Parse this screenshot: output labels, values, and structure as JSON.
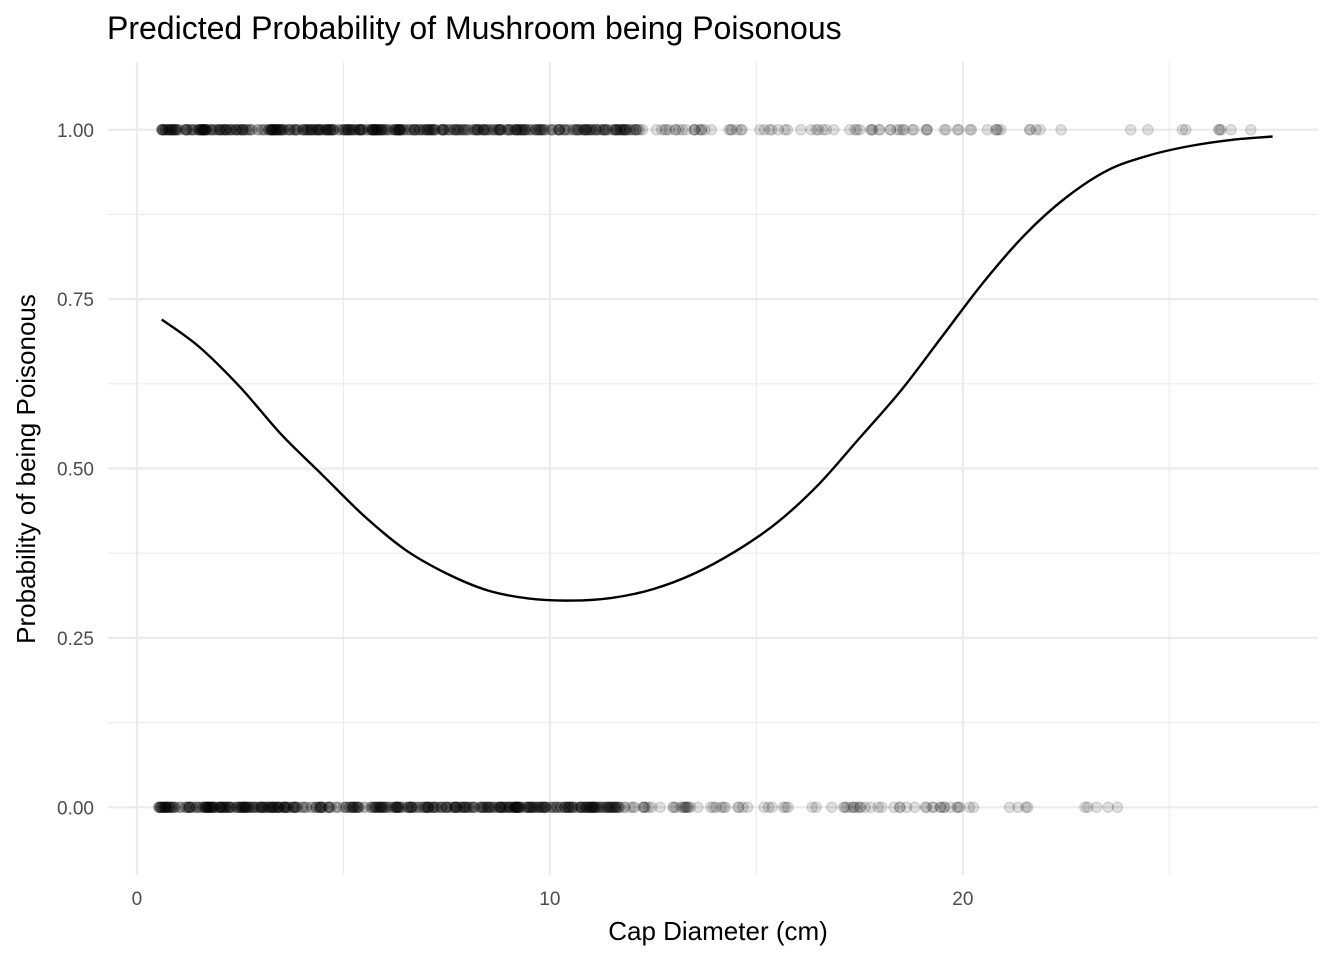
{
  "chart_data": {
    "type": "scatter",
    "title": "Predicted Probability of Mushroom being Poisonous",
    "xlabel": "Cap Diameter (cm)",
    "ylabel": "Probability of being Poisonous",
    "xlim": [
      -0.7,
      28.6
    ],
    "ylim": [
      -0.1,
      1.1
    ],
    "x_ticks": [
      0,
      10,
      20
    ],
    "x_tick_labels": [
      "0",
      "10",
      "20"
    ],
    "y_ticks": [
      0,
      0.25,
      0.5,
      0.75,
      1
    ],
    "y_tick_labels": [
      "0.00",
      "0.25",
      "0.50",
      "0.75",
      "1.00"
    ],
    "grid": true,
    "legend": "none",
    "point_color": "#000000",
    "line_color": "#000000",
    "fitted_curve": {
      "x": [
        0.6,
        1.5,
        2.5,
        3.5,
        4.5,
        5.5,
        6.5,
        7.5,
        8.5,
        9.5,
        10.5,
        11.5,
        12.5,
        13.5,
        14.5,
        15.5,
        16.5,
        17.5,
        18.5,
        19.5,
        20.5,
        21.5,
        22.5,
        23.5,
        24.5,
        25.5,
        26.5,
        27.5
      ],
      "y": [
        0.72,
        0.68,
        0.62,
        0.55,
        0.49,
        0.43,
        0.38,
        0.345,
        0.32,
        0.308,
        0.305,
        0.309,
        0.322,
        0.345,
        0.378,
        0.42,
        0.476,
        0.545,
        0.615,
        0.695,
        0.775,
        0.845,
        0.9,
        0.94,
        0.962,
        0.976,
        0.985,
        0.99
      ]
    },
    "series": [
      {
        "values": [
          {
            "x_min": 0.6,
            "x_max": 12.2,
            "y": 1,
            "density": "dense"
          },
          {
            "x_min": 12.2,
            "x_max": 21.0,
            "y": 1,
            "density": "medium"
          },
          {
            "x_min": 21.0,
            "x_max": 27.5,
            "y": 1,
            "density": "sparse"
          }
        ]
      },
      {
        "values": [
          {
            "x_min": 0.5,
            "x_max": 11.8,
            "y": 0,
            "density": "dense"
          },
          {
            "x_min": 11.8,
            "x_max": 19.8,
            "y": 0,
            "density": "medium"
          },
          {
            "x_min": 19.8,
            "x_max": 23.8,
            "y": 0,
            "density": "sparse"
          }
        ]
      }
    ]
  }
}
